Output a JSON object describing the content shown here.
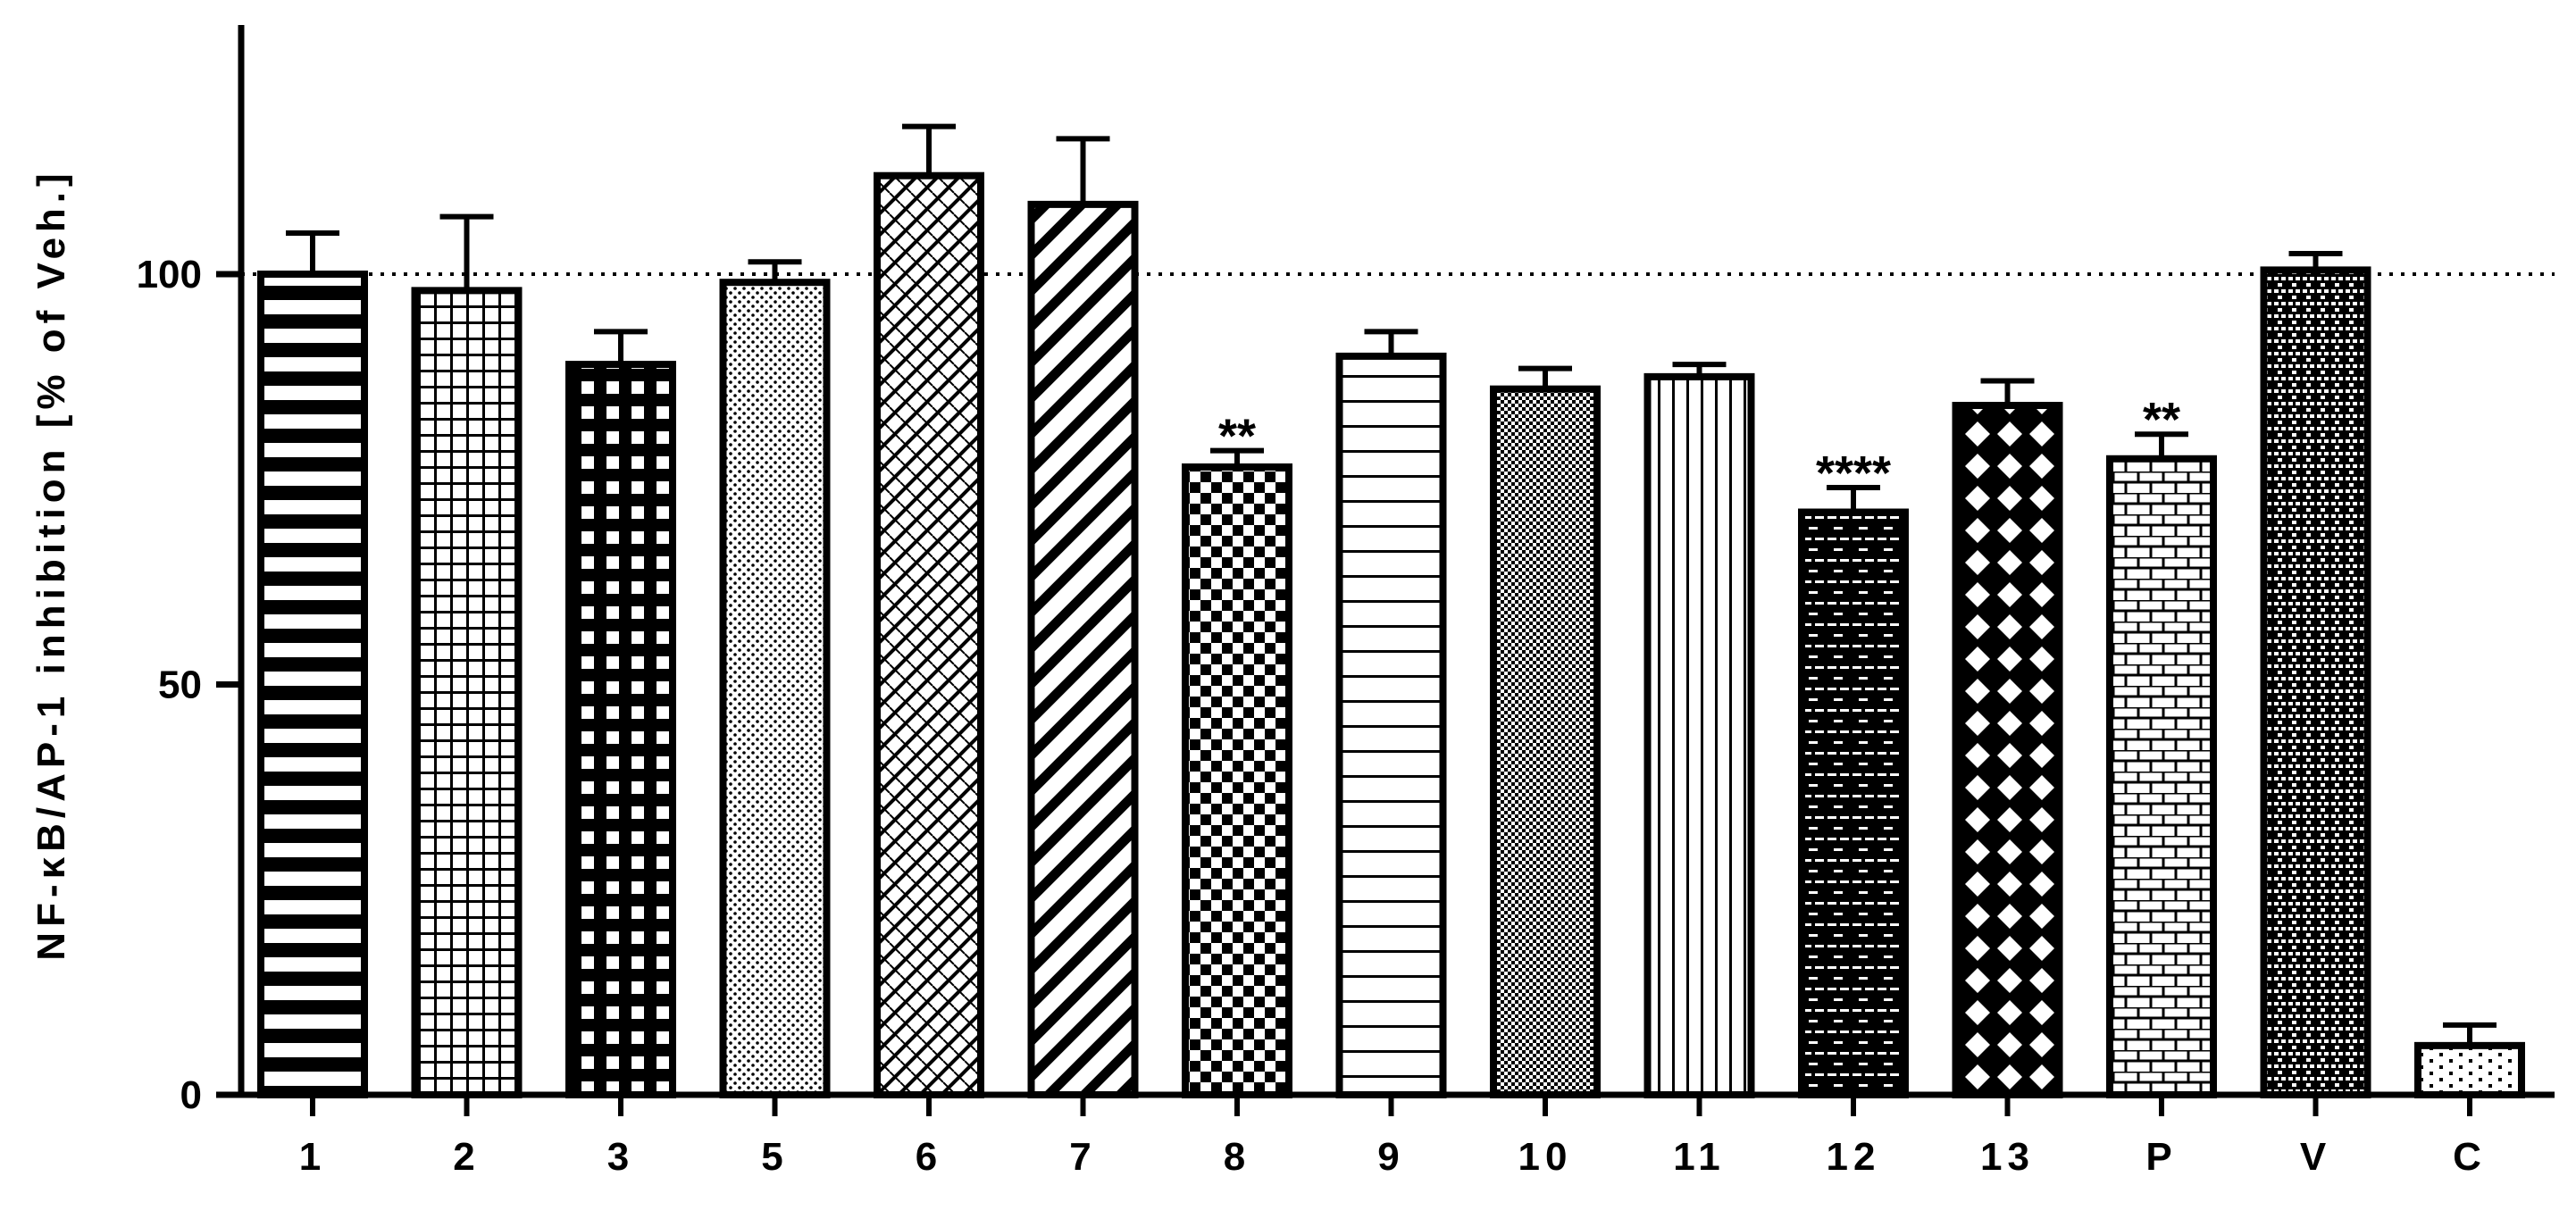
{
  "chart_data": {
    "type": "bar",
    "title": "",
    "xlabel": "",
    "ylabel": "NF-κB/AP-1 inhibition [% of Veh.]",
    "ylim": [
      0,
      130
    ],
    "yticks": [
      0,
      50,
      100
    ],
    "reference_line": 100,
    "grid": false,
    "categories": [
      "1",
      "2",
      "3",
      "5",
      "6",
      "7",
      "8",
      "9",
      "10",
      "11",
      "12",
      "13",
      "P",
      "V",
      "C"
    ],
    "values": [
      100,
      98,
      89,
      99,
      112,
      108.5,
      76.5,
      90,
      86,
      87.5,
      71,
      84,
      77.5,
      100.5,
      6
    ],
    "errors": [
      5,
      9,
      4,
      2.5,
      6,
      8,
      2,
      3,
      2.5,
      1.5,
      3,
      3,
      3,
      2,
      2.5
    ],
    "patterns": [
      "hstripes-thick",
      "grid-fine",
      "grid-bold",
      "dots",
      "zigzag",
      "diagonal-thick",
      "checker",
      "hstripes-thin",
      "dense-dots",
      "vstripes",
      "brick-dark",
      "diamond",
      "brick-light",
      "brick-dense",
      "dots-sparse"
    ],
    "annotations": [
      {
        "category": "8",
        "text": "**"
      },
      {
        "category": "12",
        "text": "****"
      },
      {
        "category": "P",
        "text": "**"
      }
    ]
  }
}
